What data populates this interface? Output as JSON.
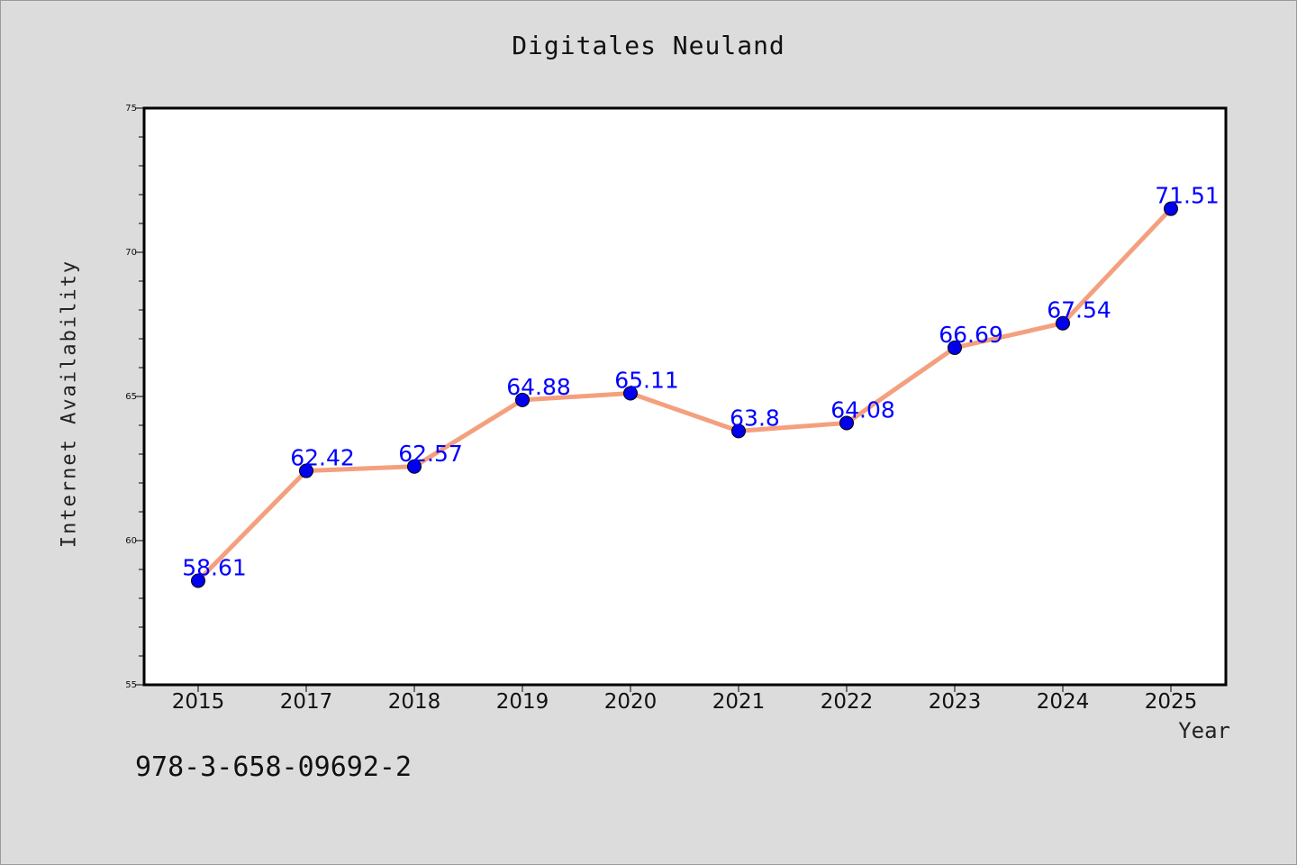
{
  "page": {
    "background": "#dcdcdc",
    "footer_text": "978-3-658-09692-2"
  },
  "chart_data": {
    "type": "line",
    "title": "Digitales Neuland",
    "xlabel": "Year",
    "ylabel": "Internet Availability",
    "categories": [
      "2015",
      "2017",
      "2018",
      "2019",
      "2020",
      "2021",
      "2022",
      "2023",
      "2024",
      "2025"
    ],
    "series": [
      {
        "values": [
          58.61,
          62.42,
          62.57,
          64.88,
          65.11,
          63.8,
          64.08,
          66.69,
          67.54,
          71.51
        ],
        "labels": [
          "58.61",
          "62.42",
          "62.57",
          "64.88",
          "65.11",
          "63.8",
          "64.08",
          "66.69",
          "67.54",
          "71.51"
        ],
        "line_color": "#f4a07e",
        "marker_color": "#0000ee",
        "label_color": "#0000ff"
      }
    ],
    "ylim": [
      55,
      75
    ],
    "y_ticks": [
      55,
      60,
      65,
      70,
      75
    ],
    "y_minor_step": 1,
    "grid": false,
    "plot_background": "#ffffff",
    "legend": "none"
  }
}
